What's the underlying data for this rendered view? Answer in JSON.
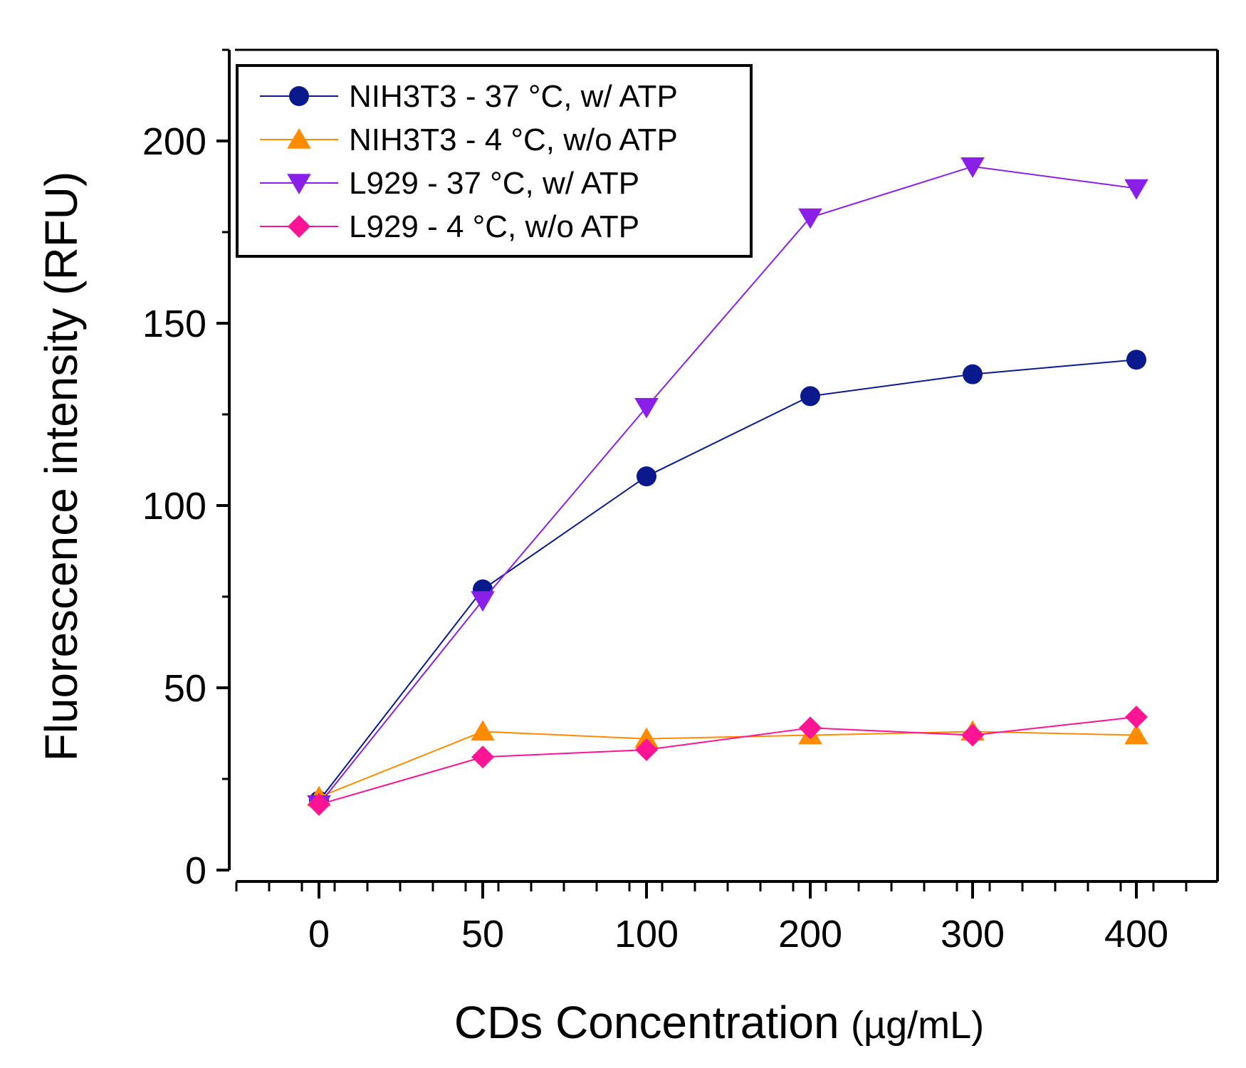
{
  "chart_data": {
    "type": "line",
    "title": "",
    "xlabel_main": "CDs Concentration",
    "xlabel_unit": "(µg/mL)",
    "ylabel": "Fluorescence intensity (RFU)",
    "categories": [
      "0",
      "50",
      "100",
      "200",
      "300",
      "400"
    ],
    "yticks": [
      0,
      50,
      100,
      150,
      200
    ],
    "ylim": [
      0,
      225
    ],
    "grid": false,
    "legend_position": "top-left",
    "series": [
      {
        "name": "NIH3T3 - 37 °C, w/  ATP",
        "color": "#0a1a8c",
        "marker": "circle",
        "values": [
          19,
          77,
          108,
          130,
          136,
          140
        ]
      },
      {
        "name": "NIH3T3 - 4 °C, w/o ATP",
        "color": "#ff8c00",
        "marker": "triangle-up",
        "values": [
          20,
          38,
          36,
          37,
          38,
          37
        ]
      },
      {
        "name": "L929 - 37 °C, w/  ATP",
        "color": "#8a1fe8",
        "marker": "triangle-down",
        "values": [
          18,
          74,
          127,
          179,
          193,
          187
        ]
      },
      {
        "name": "L929 - 4 °C, w/o ATP",
        "color": "#ff1493",
        "marker": "diamond",
        "values": [
          18,
          31,
          33,
          39,
          37,
          42
        ]
      }
    ]
  }
}
